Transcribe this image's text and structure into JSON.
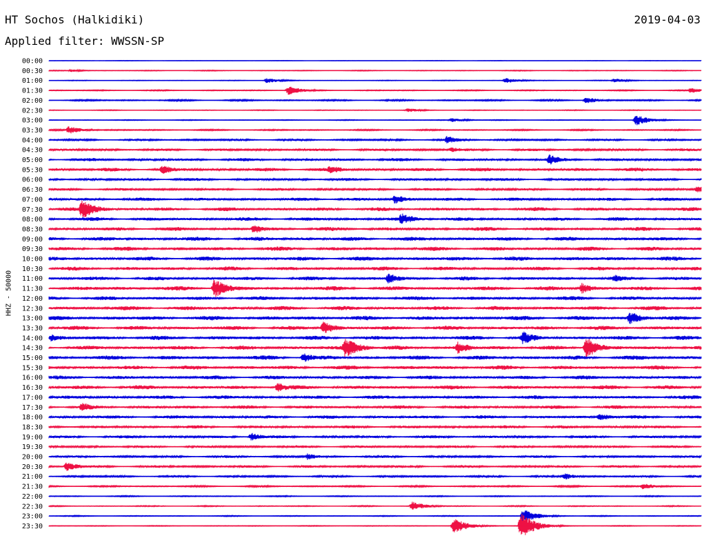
{
  "header": {
    "station": "HT Sochos (Halkidiki)",
    "date": "2019-04-03",
    "filter": "Applied filter: WWSSN-SP"
  },
  "chart_data": {
    "type": "line",
    "title": "HT Sochos (Halkidiki)",
    "subtitle": "Applied filter: WWSSN-SP",
    "date": "2019-04-03",
    "ylabel": "HHZ - 50000",
    "xlabel": "",
    "trace_minutes": 30,
    "trace_count": 48,
    "colors": [
      "#0000dd",
      "#ee1144"
    ],
    "tick_labels": [
      "00:00",
      "00:30",
      "01:00",
      "01:30",
      "02:00",
      "02:30",
      "03:00",
      "03:30",
      "04:00",
      "04:30",
      "05:00",
      "05:30",
      "06:00",
      "06:30",
      "07:00",
      "07:30",
      "08:00",
      "08:30",
      "09:00",
      "09:30",
      "10:00",
      "10:30",
      "11:00",
      "11:30",
      "12:00",
      "12:30",
      "13:00",
      "13:30",
      "14:00",
      "14:30",
      "15:00",
      "15:30",
      "16:00",
      "16:30",
      "17:00",
      "17:30",
      "18:00",
      "18:30",
      "19:00",
      "19:30",
      "20:00",
      "20:30",
      "21:00",
      "21:30",
      "22:00",
      "22:30",
      "23:00",
      "23:30"
    ],
    "noise_level": [
      0.3,
      0.6,
      0.5,
      0.8,
      1.2,
      0.6,
      0.6,
      1.0,
      1.6,
      2.0,
      2.4,
      2.8,
      2.2,
      2.0,
      2.6,
      2.9,
      2.8,
      3.0,
      3.2,
      3.2,
      3.3,
      3.0,
      3.0,
      3.3,
      3.1,
      3.3,
      3.4,
      3.2,
      3.3,
      3.2,
      3.4,
      3.2,
      3.0,
      3.2,
      2.8,
      2.8,
      2.6,
      2.4,
      2.2,
      2.0,
      1.8,
      2.0,
      1.6,
      1.2,
      0.8,
      0.8,
      0.7,
      0.6
    ],
    "events": [
      {
        "trace": 1,
        "minute": 1.0,
        "amplitude": 2
      },
      {
        "trace": 2,
        "minute": 10.0,
        "amplitude": 4
      },
      {
        "trace": 2,
        "minute": 21.0,
        "amplitude": 4
      },
      {
        "trace": 2,
        "minute": 26.0,
        "amplitude": 3
      },
      {
        "trace": 3,
        "minute": 11.0,
        "amplitude": 7
      },
      {
        "trace": 3,
        "minute": 29.5,
        "amplitude": 4
      },
      {
        "trace": 4,
        "minute": 24.7,
        "amplitude": 5
      },
      {
        "trace": 5,
        "minute": 16.5,
        "amplitude": 3
      },
      {
        "trace": 6,
        "minute": 27.0,
        "amplitude": 8
      },
      {
        "trace": 6,
        "minute": 18.5,
        "amplitude": 3
      },
      {
        "trace": 7,
        "minute": 0.9,
        "amplitude": 6
      },
      {
        "trace": 8,
        "minute": 18.3,
        "amplitude": 6
      },
      {
        "trace": 9,
        "minute": 18.5,
        "amplitude": 4
      },
      {
        "trace": 10,
        "minute": 23.0,
        "amplitude": 8
      },
      {
        "trace": 11,
        "minute": 5.2,
        "amplitude": 7
      },
      {
        "trace": 11,
        "minute": 12.9,
        "amplitude": 7
      },
      {
        "trace": 13,
        "minute": 29.8,
        "amplitude": 5
      },
      {
        "trace": 14,
        "minute": 15.9,
        "amplitude": 7
      },
      {
        "trace": 15,
        "minute": 1.5,
        "amplitude": 15
      },
      {
        "trace": 16,
        "minute": 16.2,
        "amplitude": 9
      },
      {
        "trace": 17,
        "minute": 9.4,
        "amplitude": 7
      },
      {
        "trace": 22,
        "minute": 15.6,
        "amplitude": 8
      },
      {
        "trace": 22,
        "minute": 26.0,
        "amplitude": 6
      },
      {
        "trace": 23,
        "minute": 7.6,
        "amplitude": 15
      },
      {
        "trace": 23,
        "minute": 24.5,
        "amplitude": 8
      },
      {
        "trace": 26,
        "minute": 26.7,
        "amplitude": 10
      },
      {
        "trace": 27,
        "minute": 12.6,
        "amplitude": 10
      },
      {
        "trace": 28,
        "minute": 0.1,
        "amplitude": 6
      },
      {
        "trace": 28,
        "minute": 21.8,
        "amplitude": 10
      },
      {
        "trace": 29,
        "minute": 13.6,
        "amplitude": 16
      },
      {
        "trace": 29,
        "minute": 18.8,
        "amplitude": 9
      },
      {
        "trace": 29,
        "minute": 24.7,
        "amplitude": 16
      },
      {
        "trace": 30,
        "minute": 11.7,
        "amplitude": 7
      },
      {
        "trace": 33,
        "minute": 10.5,
        "amplitude": 7
      },
      {
        "trace": 35,
        "minute": 1.5,
        "amplitude": 7
      },
      {
        "trace": 36,
        "minute": 25.3,
        "amplitude": 6
      },
      {
        "trace": 38,
        "minute": 9.3,
        "amplitude": 6
      },
      {
        "trace": 40,
        "minute": 11.9,
        "amplitude": 5
      },
      {
        "trace": 41,
        "minute": 0.8,
        "amplitude": 7
      },
      {
        "trace": 42,
        "minute": 23.7,
        "amplitude": 5
      },
      {
        "trace": 43,
        "minute": 27.3,
        "amplitude": 5
      },
      {
        "trace": 45,
        "minute": 16.7,
        "amplitude": 7
      },
      {
        "trace": 46,
        "minute": 21.8,
        "amplitude": 11
      },
      {
        "trace": 47,
        "minute": 18.6,
        "amplitude": 12
      },
      {
        "trace": 47,
        "minute": 21.7,
        "amplitude": 20
      }
    ]
  }
}
